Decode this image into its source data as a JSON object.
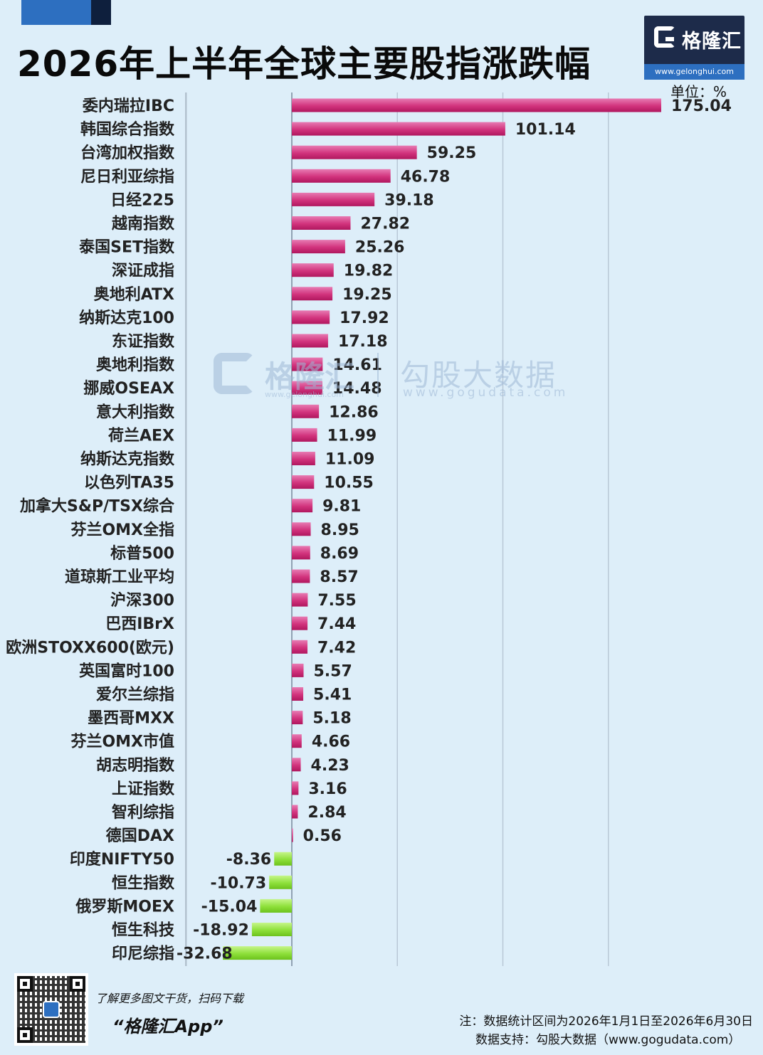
{
  "title": "2026年上半年全球主要股指涨跌幅",
  "logo": {
    "name": "格隆汇",
    "url": "www.gelonghui.com"
  },
  "unit_label": "单位：%",
  "watermark": {
    "brand1": "格隆汇",
    "url1": "www.gelonghui.com",
    "brand2": "勾股大数据",
    "url2": "www.gogudata.com"
  },
  "footer": {
    "promo_line1": "了解更多图文干货，扫码下载",
    "promo_line2": "“格隆汇App”",
    "note": "注：数据统计区间为2026年1月1日至2026年6月30日",
    "source": "数据支持：勾股大数据（www.gogudata.com）"
  },
  "colors": {
    "positive": "#d2337d",
    "negative": "#8ee03a",
    "grid": "#b9c8d6"
  },
  "chart_data": {
    "type": "bar",
    "orientation": "horizontal",
    "title": "2026年上半年全球主要股指涨跌幅",
    "unit": "%",
    "grid": true,
    "xlim": [
      -50,
      175
    ],
    "categories": [
      "委内瑞拉IBC",
      "韩国综合指数",
      "台湾加权指数",
      "尼日利亚综指",
      "日经225",
      "越南指数",
      "泰国SET指数",
      "深证成指",
      "奥地利ATX",
      "纳斯达克100",
      "东证指数",
      "奥地利指数",
      "挪威OSEAX",
      "意大利指数",
      "荷兰AEX",
      "纳斯达克指数",
      "以色列TA35",
      "加拿大S&P/TSX综合",
      "芬兰OMX全指",
      "标普500",
      "道琼斯工业平均",
      "沪深300",
      "巴西IBrX",
      "欧洲STOXX600(欧元)",
      "英国富时100",
      "爱尔兰综指",
      "墨西哥MXX",
      "芬兰OMX市值",
      "胡志明指数",
      "上证指数",
      "智利综指",
      "德国DAX",
      "印度NIFTY50",
      "恒生指数",
      "俄罗斯MOEX",
      "恒生科技",
      "印尼综指"
    ],
    "values": [
      175.04,
      101.14,
      59.25,
      46.78,
      39.18,
      27.82,
      25.26,
      19.82,
      19.25,
      17.92,
      17.18,
      14.61,
      14.48,
      12.86,
      11.99,
      11.09,
      10.55,
      9.81,
      8.95,
      8.69,
      8.57,
      7.55,
      7.44,
      7.42,
      5.57,
      5.41,
      5.18,
      4.66,
      4.23,
      3.16,
      2.84,
      0.56,
      -8.36,
      -10.73,
      -15.04,
      -18.92,
      -32.68
    ],
    "labels": [
      "175.04",
      "101.14",
      "59.25",
      "46.78",
      "39.18",
      "27.82",
      "25.26",
      "19.82",
      "19.25",
      "17.92",
      "17.18",
      "14.61",
      "14.48",
      "12.86",
      "11.99",
      "11.09",
      "10.55",
      "9.81",
      "8.95",
      "8.69",
      "8.57",
      "7.55",
      "7.44",
      "7.42",
      "5.57",
      "5.41",
      "5.18",
      "4.66",
      "4.23",
      "3.16",
      "2.84",
      "0.56",
      "-8.36",
      "-10.73",
      "-15.04",
      "-18.92",
      "-32.68"
    ]
  }
}
